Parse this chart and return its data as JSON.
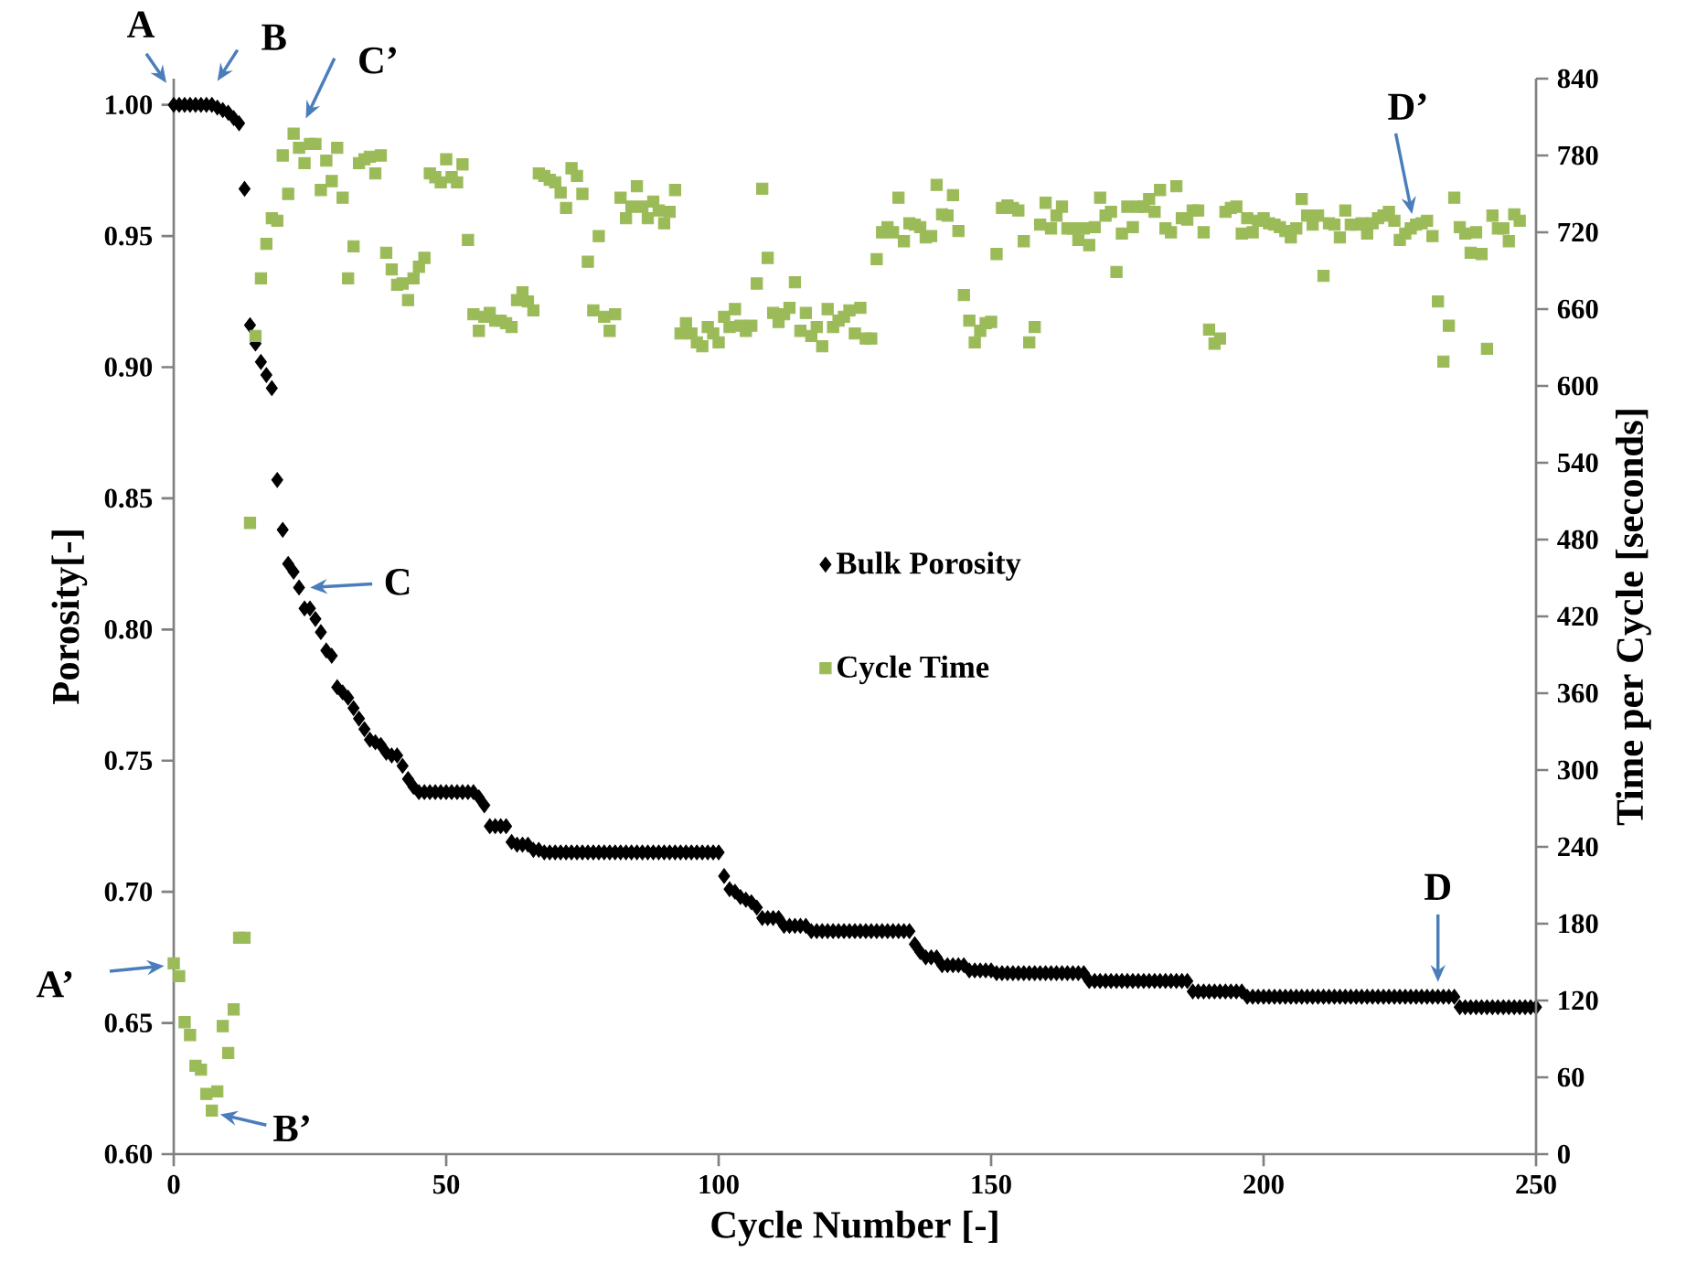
{
  "chart_data": {
    "type": "scatter",
    "xlabel": "Cycle Number [-]",
    "ylabel": "Porosity[-]",
    "y2label": "Time per Cycle [seconds]",
    "x": [
      0,
      1,
      2,
      3,
      4,
      5,
      6,
      7,
      8,
      9,
      10,
      11,
      12,
      13,
      14,
      15,
      16,
      17,
      18,
      19,
      20,
      21,
      22,
      23,
      24,
      25,
      26,
      27,
      28,
      29,
      30,
      31,
      32,
      33,
      34,
      35,
      36,
      37,
      38,
      39,
      40,
      41,
      42,
      43,
      44,
      45,
      46,
      47,
      48,
      49,
      50,
      51,
      52,
      53,
      54,
      55,
      56,
      57,
      58,
      59,
      60,
      61,
      62,
      63,
      64,
      65,
      66,
      67,
      68,
      69,
      70,
      71,
      72,
      73,
      74,
      75,
      76,
      77,
      78,
      79,
      80,
      81,
      82,
      83,
      84,
      85,
      86,
      87,
      88,
      89,
      90,
      91,
      92,
      93,
      94,
      95,
      96,
      97,
      98,
      99,
      100,
      101,
      102,
      103,
      104,
      105,
      106,
      107,
      108,
      109,
      110,
      111,
      112,
      113,
      114,
      115,
      116,
      117,
      118,
      119,
      120,
      121,
      122,
      123,
      124,
      125,
      126,
      127,
      128,
      129,
      130,
      131,
      132,
      133,
      134,
      135,
      136,
      137,
      138,
      139,
      140,
      141,
      142,
      143,
      144,
      145,
      146,
      147,
      148,
      149,
      150,
      151,
      152,
      153,
      154,
      155,
      156,
      157,
      158,
      159,
      160,
      161,
      162,
      163,
      164,
      165,
      166,
      167,
      168,
      169,
      170,
      171,
      172,
      173,
      174,
      175,
      176,
      177,
      178,
      179,
      180,
      181,
      182,
      183,
      184,
      185,
      186,
      187,
      188,
      189,
      190,
      191,
      192,
      193,
      194,
      195,
      196,
      197,
      198,
      199,
      200,
      201,
      202,
      203,
      204,
      205,
      206,
      207,
      208,
      209,
      210,
      211,
      212,
      213,
      214,
      215,
      216,
      217,
      218,
      219,
      220,
      221,
      222,
      223,
      224,
      225,
      226,
      227,
      228,
      229,
      230,
      231,
      232,
      233,
      234,
      235,
      236,
      237,
      238,
      239,
      240,
      241,
      242,
      243,
      244,
      245,
      246,
      247,
      248,
      249,
      250
    ],
    "series": [
      {
        "name": "Bulk Porosity",
        "color": "#000000",
        "marker": "diamond",
        "values": [
          1.0,
          1.0,
          1.0,
          1.0,
          1.0,
          1.0,
          1.0,
          1.0,
          0.999,
          0.998,
          0.997,
          0.995,
          0.993,
          0.968,
          0.916,
          0.909,
          0.902,
          0.897,
          0.892,
          0.857,
          0.838,
          0.825,
          0.822,
          0.816,
          0.808,
          0.808,
          0.804,
          0.799,
          0.792,
          0.79,
          0.778,
          0.776,
          0.774,
          0.77,
          0.766,
          0.762,
          0.758,
          0.757,
          0.756,
          0.753,
          0.752,
          0.752,
          0.748,
          0.743,
          0.74,
          0.738,
          0.738,
          0.738,
          0.738,
          0.738,
          0.738,
          0.738,
          0.738,
          0.738,
          0.738,
          0.738,
          0.736,
          0.733,
          0.725,
          0.725,
          0.725,
          0.725,
          0.719,
          0.718,
          0.718,
          0.718,
          0.716,
          0.716,
          0.715,
          0.715,
          0.715,
          0.715,
          0.715,
          0.715,
          0.715,
          0.715,
          0.715,
          0.715,
          0.715,
          0.715,
          0.715,
          0.715,
          0.715,
          0.715,
          0.715,
          0.715,
          0.715,
          0.715,
          0.715,
          0.715,
          0.715,
          0.715,
          0.715,
          0.715,
          0.715,
          0.715,
          0.715,
          0.715,
          0.715,
          0.715,
          0.715,
          0.706,
          0.701,
          0.7,
          0.698,
          0.697,
          0.696,
          0.694,
          0.69,
          0.69,
          0.69,
          0.69,
          0.687,
          0.687,
          0.687,
          0.687,
          0.687,
          0.685,
          0.685,
          0.685,
          0.685,
          0.685,
          0.685,
          0.685,
          0.685,
          0.685,
          0.685,
          0.685,
          0.685,
          0.685,
          0.685,
          0.685,
          0.685,
          0.685,
          0.685,
          0.685,
          0.68,
          0.677,
          0.675,
          0.675,
          0.675,
          0.672,
          0.672,
          0.672,
          0.672,
          0.672,
          0.67,
          0.67,
          0.67,
          0.67,
          0.67,
          0.669,
          0.669,
          0.669,
          0.669,
          0.669,
          0.669,
          0.669,
          0.669,
          0.669,
          0.669,
          0.669,
          0.669,
          0.669,
          0.669,
          0.669,
          0.669,
          0.669,
          0.666,
          0.666,
          0.666,
          0.666,
          0.666,
          0.666,
          0.666,
          0.666,
          0.666,
          0.666,
          0.666,
          0.666,
          0.666,
          0.666,
          0.666,
          0.666,
          0.666,
          0.666,
          0.666,
          0.662,
          0.662,
          0.662,
          0.662,
          0.662,
          0.662,
          0.662,
          0.662,
          0.662,
          0.662,
          0.66,
          0.66,
          0.66,
          0.66,
          0.66,
          0.66,
          0.66,
          0.66,
          0.66,
          0.66,
          0.66,
          0.66,
          0.66,
          0.66,
          0.66,
          0.66,
          0.66,
          0.66,
          0.66,
          0.66,
          0.66,
          0.66,
          0.66,
          0.66,
          0.66,
          0.66,
          0.66,
          0.66,
          0.66,
          0.66,
          0.66,
          0.66,
          0.66,
          0.66,
          0.66,
          0.66,
          0.66,
          0.66,
          0.66,
          0.656,
          0.656,
          0.656,
          0.656,
          0.656,
          0.656,
          0.656,
          0.656,
          0.656,
          0.656,
          0.656,
          0.656,
          0.656,
          0.656,
          0.656
        ]
      },
      {
        "name": "Cycle Time",
        "color": "#9bbb59",
        "marker": "square",
        "axis": "y2",
        "x": [
          0,
          1,
          2,
          3,
          4,
          5,
          6,
          7,
          8,
          9,
          10,
          11,
          12,
          13,
          14,
          15,
          16,
          17,
          18,
          19,
          20,
          21,
          22,
          23,
          24,
          25,
          26,
          27,
          28,
          29,
          30,
          31,
          32,
          33,
          34,
          35,
          36,
          37,
          38,
          39,
          40,
          41,
          42,
          43,
          44,
          45,
          46,
          47,
          48,
          49,
          50,
          51,
          52,
          53,
          54,
          55,
          56,
          57,
          58,
          59,
          60,
          61,
          62,
          63,
          64,
          65,
          66,
          67,
          68,
          69,
          70,
          71,
          72,
          73,
          74,
          75,
          76,
          77,
          78,
          79,
          80,
          81,
          82,
          83,
          84,
          85,
          86,
          87,
          88,
          89,
          90,
          91,
          92,
          93,
          94,
          95,
          96,
          97,
          98,
          99,
          100,
          101,
          102,
          103,
          104,
          105,
          106,
          107,
          108,
          109,
          110,
          111,
          112,
          113,
          114,
          115,
          116,
          117,
          118,
          119,
          120,
          121,
          122,
          123,
          124,
          125,
          126,
          127,
          128,
          129,
          130,
          131,
          132,
          133,
          134,
          135,
          136,
          137,
          138,
          139,
          140,
          141,
          142,
          143,
          144,
          145,
          146,
          147,
          148,
          149,
          150,
          151,
          152,
          153,
          154,
          155,
          156,
          157,
          158,
          159,
          160,
          161,
          162,
          163,
          164,
          165,
          166,
          167,
          168,
          169,
          170,
          171,
          172,
          173,
          174,
          175,
          176,
          177,
          178,
          179,
          180,
          181,
          182,
          183,
          184,
          185,
          186,
          187,
          188,
          189,
          190,
          191,
          192,
          193,
          194,
          195,
          196,
          197,
          198,
          199,
          200,
          201,
          202,
          203,
          204,
          205,
          206,
          207,
          208,
          209,
          210,
          211,
          212,
          213,
          214,
          215,
          216,
          217,
          218,
          219,
          220,
          221,
          222,
          223,
          224,
          225,
          226,
          227,
          228,
          229,
          230,
          231,
          232,
          233,
          234,
          235,
          236,
          237,
          238,
          239,
          240,
          241,
          242,
          243,
          244,
          245,
          246,
          247
        ],
        "values": [
          149,
          139,
          103,
          93,
          69,
          66,
          47,
          34,
          49,
          100,
          79,
          113,
          169,
          169,
          493,
          639,
          684,
          711,
          731,
          729,
          780,
          750,
          797,
          786,
          774,
          789,
          789,
          753,
          776,
          760,
          786,
          747,
          684,
          709,
          774,
          777,
          779,
          766,
          780,
          704,
          691,
          679,
          680,
          667,
          684,
          693,
          700,
          766,
          763,
          759,
          777,
          763,
          759,
          773,
          714,
          656,
          643,
          654,
          657,
          651,
          651,
          649,
          646,
          667,
          673,
          666,
          659,
          766,
          764,
          761,
          759,
          751,
          739,
          770,
          764,
          750,
          697,
          659,
          717,
          654,
          643,
          656,
          747,
          731,
          740,
          756,
          740,
          731,
          744,
          737,
          727,
          736,
          753,
          641,
          649,
          641,
          634,
          631,
          646,
          641,
          634,
          654,
          646,
          660,
          647,
          643,
          647,
          680,
          754,
          700,
          657,
          650,
          656,
          661,
          681,
          643,
          657,
          639,
          646,
          631,
          660,
          646,
          651,
          654,
          659,
          641,
          661,
          637,
          637,
          699,
          720,
          724,
          720,
          747,
          713,
          727,
          726,
          724,
          716,
          717,
          757,
          734,
          733,
          749,
          721,
          671,
          651,
          634,
          643,
          649,
          650,
          703,
          739,
          741,
          739,
          737,
          713,
          634,
          646,
          726,
          743,
          723,
          733,
          740,
          723,
          723,
          714,
          723,
          710,
          724,
          747,
          733,
          736,
          689,
          719,
          740,
          724,
          740,
          740,
          746,
          736,
          753,
          723,
          720,
          756,
          731,
          730,
          737,
          737,
          720,
          644,
          633,
          637,
          736,
          739,
          740,
          719,
          731,
          720,
          729,
          731,
          727,
          726,
          724,
          721,
          716,
          723,
          746,
          733,
          726,
          733,
          686,
          727,
          726,
          716,
          737,
          726,
          726,
          727,
          719,
          727,
          731,
          733,
          736,
          729,
          714,
          719,
          723,
          726,
          727,
          729,
          717,
          666,
          619,
          647,
          747,
          724,
          719,
          704,
          720,
          703,
          629,
          733,
          723,
          723,
          713,
          734,
          729
        ]
      }
    ],
    "xlim": [
      0,
      250
    ],
    "xticks": [
      0,
      50,
      100,
      150,
      200,
      250
    ],
    "ylim": [
      0.6,
      1.01
    ],
    "yticks": [
      {
        "value": 0.6,
        "label": "0.60"
      },
      {
        "value": 0.65,
        "label": "0.65"
      },
      {
        "value": 0.7,
        "label": "0.70"
      },
      {
        "value": 0.75,
        "label": "0.75"
      },
      {
        "value": 0.8,
        "label": "0.80"
      },
      {
        "value": 0.85,
        "label": "0.85"
      },
      {
        "value": 0.9,
        "label": "0.90"
      },
      {
        "value": 0.95,
        "label": "0.95"
      },
      {
        "value": 1.0,
        "label": "1.00"
      }
    ],
    "y2lim": [
      0,
      840
    ],
    "y2ticks": [
      0,
      60,
      120,
      180,
      240,
      300,
      360,
      420,
      480,
      540,
      600,
      660,
      720,
      780,
      840
    ],
    "legend": "center",
    "annotations": [
      {
        "text": "A",
        "x": 0,
        "y": 1.0
      },
      {
        "text": "B",
        "x": 7,
        "y": 1.0
      },
      {
        "text": "C",
        "x": 23,
        "y": 0.816
      },
      {
        "text": "D",
        "x": 232,
        "y": 0.66
      },
      "A’",
      "B’",
      "C’",
      "D’"
    ]
  }
}
